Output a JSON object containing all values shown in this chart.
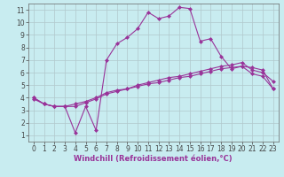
{
  "title": "",
  "xlabel": "Windchill (Refroidissement éolien,°C)",
  "ylabel": "",
  "xlim": [
    -0.5,
    23.5
  ],
  "ylim": [
    0.5,
    11.5
  ],
  "xticks": [
    0,
    1,
    2,
    3,
    4,
    5,
    6,
    7,
    8,
    9,
    10,
    11,
    12,
    13,
    14,
    15,
    16,
    17,
    18,
    19,
    20,
    21,
    22,
    23
  ],
  "yticks": [
    1,
    2,
    3,
    4,
    5,
    6,
    7,
    8,
    9,
    10,
    11
  ],
  "bg_color": "#c8ecf0",
  "line_color": "#993399",
  "grid_color": "#b0c8cc",
  "line1_x": [
    0,
    1,
    2,
    3,
    4,
    5,
    6,
    7,
    8,
    9,
    10,
    11,
    12,
    13,
    14,
    15,
    16,
    17,
    18,
    19,
    20,
    21,
    22,
    23
  ],
  "line1_y": [
    4.0,
    3.5,
    3.3,
    3.3,
    3.3,
    3.6,
    3.9,
    4.3,
    4.5,
    4.7,
    5.0,
    5.2,
    5.4,
    5.6,
    5.7,
    5.9,
    6.1,
    6.3,
    6.5,
    6.6,
    6.8,
    6.2,
    6.0,
    5.3
  ],
  "line2_x": [
    0,
    1,
    2,
    3,
    4,
    5,
    6,
    7,
    8,
    9,
    10,
    11,
    12,
    13,
    14,
    15,
    16,
    17,
    18,
    19,
    20,
    21,
    22,
    23
  ],
  "line2_y": [
    3.9,
    3.5,
    3.3,
    3.3,
    3.5,
    3.7,
    4.0,
    4.4,
    4.6,
    4.7,
    4.9,
    5.1,
    5.2,
    5.4,
    5.6,
    5.7,
    5.9,
    6.1,
    6.3,
    6.4,
    6.5,
    5.9,
    5.7,
    4.7
  ],
  "line3_x": [
    0,
    1,
    2,
    3,
    4,
    5,
    6,
    7,
    8,
    9,
    10,
    11,
    12,
    13,
    14,
    15,
    16,
    17,
    18,
    19,
    20,
    21,
    22,
    23
  ],
  "line3_y": [
    4.0,
    3.5,
    3.3,
    3.3,
    1.2,
    3.3,
    1.4,
    7.0,
    8.3,
    8.8,
    9.5,
    10.8,
    10.3,
    10.5,
    11.2,
    11.1,
    8.5,
    8.7,
    7.3,
    6.3,
    6.5,
    6.4,
    6.2,
    4.7
  ],
  "tick_fontsize": 5.5,
  "xlabel_fontsize": 6.0,
  "marker_size": 2.5,
  "line_width": 0.8
}
